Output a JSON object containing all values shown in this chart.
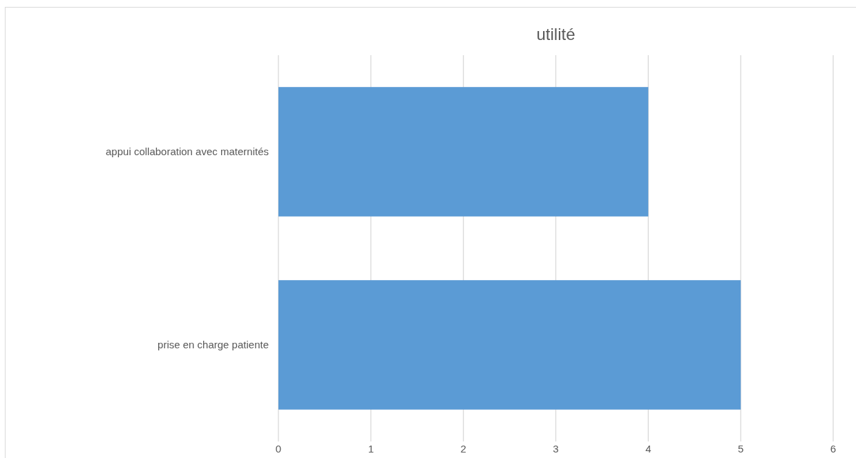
{
  "chart_data": {
    "type": "bar",
    "orientation": "horizontal",
    "title": "utilité",
    "categories": [
      "appui collaboration avec maternités",
      "prise en charge patiente"
    ],
    "values": [
      4,
      5
    ],
    "color": "#5b9bd5",
    "xlim": [
      0,
      6
    ],
    "xticks": [
      0,
      1,
      2,
      3,
      4,
      5,
      6
    ],
    "grid": "x"
  }
}
